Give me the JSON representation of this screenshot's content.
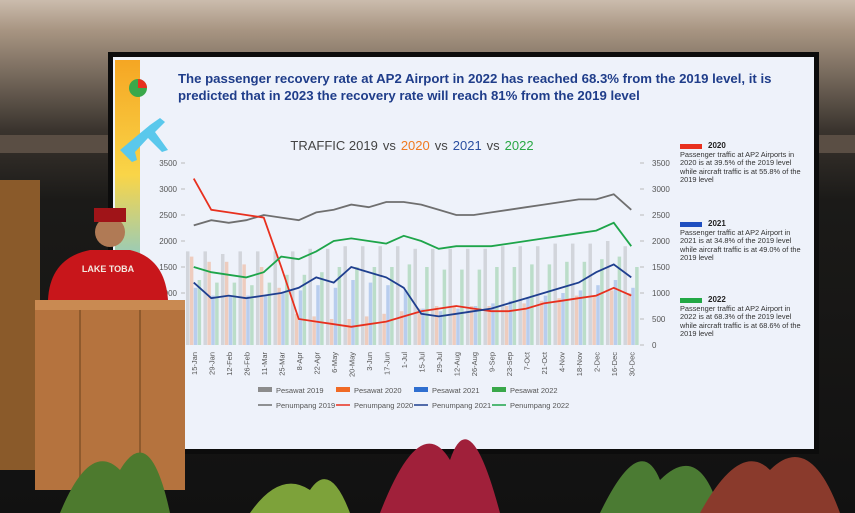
{
  "headline": "The passenger recovery rate at AP2 Airport in 2022 has reached 68.3% from the 2019 level, it is predicted that in 2023 the recovery rate will reach 81% from the 2019 level",
  "shirt_text": "LAKE TOBA",
  "notes": [
    {
      "year": "2020",
      "color": "#e8301e",
      "text": "Passenger traffic at AP2 Airports in 2020 is at 39.5% of the 2019 level while aircraft traffic is at 55.8% of the 2019 level"
    },
    {
      "year": "2021",
      "color": "#1f4fc0",
      "text": "Passenger traffic at AP2 Airport in 2021 is at 34.8% of the 2019 level while aircraft traffic is at 49.0% of the 2019 level"
    },
    {
      "year": "2022",
      "color": "#22a845",
      "text": "Passenger traffic at AP2 Airport in 2022 is at 68.3% of the 2019 level while aircraft traffic is at 68.6% of the 2019 level"
    }
  ],
  "chart_data": {
    "type": "bar",
    "title_parts": [
      {
        "text": "TRAFFIC 2019",
        "color": "#444444"
      },
      {
        "text": "vs",
        "color": "#444444"
      },
      {
        "text": "2020",
        "color": "#f07a20"
      },
      {
        "text": "vs",
        "color": "#444444"
      },
      {
        "text": "2021",
        "color": "#2a4fa0"
      },
      {
        "text": "vs",
        "color": "#444444"
      },
      {
        "text": "2022",
        "color": "#2aa845"
      }
    ],
    "categories": [
      "15-Jan",
      "29-Jan",
      "12-Feb",
      "26-Feb",
      "11-Mar",
      "25-Mar",
      "8-Apr",
      "22-Apr",
      "6-May",
      "20-May",
      "3-Jun",
      "17-Jun",
      "1-Jul",
      "15-Jul",
      "29-Jul",
      "12-Aug",
      "26-Aug",
      "9-Sep",
      "23-Sep",
      "7-Oct",
      "21-Oct",
      "4-Nov",
      "18-Nov",
      "2-Dec",
      "16-Dec",
      "30-Dec"
    ],
    "ylim": [
      0,
      3500
    ],
    "yticks": [
      500,
      1000,
      1500,
      2000,
      2500,
      3000,
      3500
    ],
    "y2lim": [
      0,
      3500
    ],
    "y2ticks": [
      0,
      500,
      1000,
      1500,
      2000,
      2500,
      3000,
      3500
    ],
    "series": [
      {
        "name": "Pesawat 2019",
        "type": "bar",
        "axis": "y2",
        "color": "#8c8c8c",
        "values": [
          1800,
          1800,
          1750,
          1800,
          1800,
          1800,
          1800,
          1850,
          1850,
          1900,
          1900,
          1900,
          1900,
          1850,
          1850,
          1850,
          1850,
          1850,
          1900,
          1900,
          1900,
          1950,
          1950,
          1950,
          2000,
          1900
        ]
      },
      {
        "name": "Pesawat 2020",
        "type": "bar",
        "axis": "y2",
        "color": "#f06a25",
        "values": [
          1700,
          1600,
          1600,
          1550,
          1500,
          1100,
          600,
          550,
          500,
          500,
          550,
          600,
          650,
          700,
          750,
          750,
          750,
          750,
          750,
          800,
          850,
          900,
          950,
          950,
          1050,
          1000
        ]
      },
      {
        "name": "Pesawat 2021",
        "type": "bar",
        "axis": "y2",
        "color": "#2f6fd0",
        "values": [
          1100,
          950,
          950,
          950,
          950,
          1000,
          1050,
          1150,
          1100,
          1250,
          1200,
          1150,
          1050,
          700,
          650,
          700,
          750,
          800,
          850,
          900,
          950,
          1000,
          1050,
          1150,
          1250,
          1100
        ]
      },
      {
        "name": "Pesawat 2022",
        "type": "bar",
        "axis": "y2",
        "color": "#3aa84a",
        "values": [
          1250,
          1200,
          1200,
          1150,
          1200,
          1350,
          1350,
          1400,
          1500,
          1500,
          1500,
          1500,
          1550,
          1500,
          1450,
          1450,
          1450,
          1500,
          1500,
          1550,
          1550,
          1600,
          1600,
          1650,
          1700,
          1500
        ]
      },
      {
        "name": "Penumpang 2019",
        "type": "line",
        "axis": "y",
        "color": "#6f6f6f",
        "values": [
          2300,
          2400,
          2350,
          2400,
          2500,
          2450,
          2400,
          2550,
          2600,
          2700,
          2650,
          2750,
          2750,
          2700,
          2600,
          2500,
          2500,
          2550,
          2600,
          2650,
          2700,
          2750,
          2800,
          2800,
          2900,
          2600
        ]
      },
      {
        "name": "Penumpang 2020",
        "type": "line",
        "axis": "y",
        "color": "#e8301e",
        "values": [
          3200,
          2600,
          2550,
          2500,
          2450,
          1500,
          500,
          450,
          400,
          350,
          400,
          450,
          550,
          650,
          700,
          750,
          700,
          650,
          650,
          700,
          800,
          850,
          900,
          950,
          1100,
          950
        ]
      },
      {
        "name": "Penumpang 2021",
        "type": "line",
        "axis": "y",
        "color": "#1f3f8f",
        "values": [
          1200,
          900,
          950,
          900,
          950,
          1000,
          1100,
          1300,
          1200,
          1500,
          1400,
          1300,
          1100,
          600,
          550,
          600,
          650,
          700,
          800,
          900,
          1000,
          1100,
          1200,
          1400,
          1550,
          1300
        ]
      },
      {
        "name": "Penumpang 2022",
        "type": "line",
        "axis": "y",
        "color": "#1ea54a",
        "values": [
          1500,
          1400,
          1350,
          1300,
          1400,
          1700,
          1650,
          1800,
          2000,
          2050,
          2000,
          1950,
          2100,
          2000,
          1850,
          1900,
          1900,
          1900,
          1950,
          2000,
          2050,
          2100,
          2150,
          2200,
          2350,
          1900
        ]
      }
    ]
  }
}
